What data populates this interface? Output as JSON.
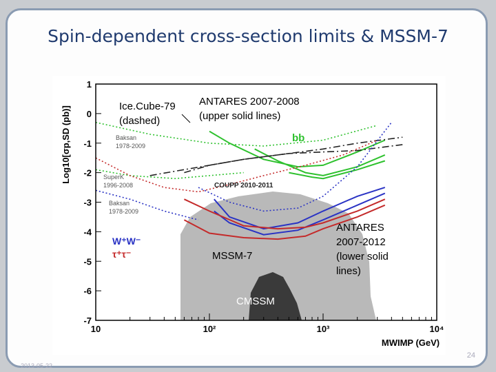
{
  "slide": {
    "title": "Spin-dependent cross-section limits & MSSM-7",
    "slide_number": "24",
    "date": "2013-05-22"
  },
  "chart_data": {
    "type": "line",
    "ylabel": "Log10[σp,SD (pb)]",
    "xlabel": "MWIMP (GeV)",
    "xscale": "log",
    "xlim": [
      10,
      10000
    ],
    "ylim": [
      -7,
      1
    ],
    "yticks": [
      "1",
      "0",
      "-1",
      "-2",
      "-3",
      "-4",
      "-5",
      "-6",
      "-7"
    ],
    "xticks": [
      "10",
      "10²",
      "10³",
      "10⁴"
    ],
    "annotations": {
      "icecube": [
        "Ice.Cube-79",
        "(dashed)"
      ],
      "antares_upper": [
        "ANTARES 2007-2008",
        "(upper solid lines)"
      ],
      "bb": "bb",
      "baksan_top": [
        "Baksan",
        "1978-2009"
      ],
      "superk": [
        "SuperK",
        "1996-2008"
      ],
      "baksan_mid": [
        "Baksan",
        "1978-2009"
      ],
      "coupp": "COUPP 2010-2011",
      "ww": "W⁺W⁻",
      "tautau": "τ⁺τ⁻",
      "antares_lower": [
        "ANTARES",
        "2007-2012",
        "(lower solid",
        "lines)"
      ],
      "mssm7": "MSSM-7",
      "cmssm": "CMSSM"
    },
    "colors": {
      "bb": "#2ec12e",
      "ww": "#2a33c4",
      "tau": "#c42a2a",
      "black": "#222222",
      "grey": "#b9b9b9",
      "dark": "#3a3a3a"
    },
    "series": [
      {
        "name": "ANTARES 2007-2008 bb",
        "color": "#2ec12e",
        "style": "solid",
        "x": [
          100,
          150,
          300,
          600,
          1000,
          2000,
          3500
        ],
        "y": [
          -0.6,
          -1.0,
          -1.55,
          -1.8,
          -1.75,
          -1.3,
          -0.9
        ]
      },
      {
        "name": "ANTARES 2007-2012 bb",
        "color": "#2ec12e",
        "style": "solid",
        "x": [
          250,
          400,
          700,
          1000,
          2000,
          3500
        ],
        "y": [
          -1.2,
          -1.6,
          -2.0,
          -2.1,
          -1.8,
          -1.4
        ]
      },
      {
        "name": "ANTARES 2007-2012 bb (2)",
        "color": "#2ec12e",
        "style": "solid",
        "x": [
          500,
          800,
          1000,
          2000,
          3500
        ],
        "y": [
          -2.0,
          -2.15,
          -2.2,
          -1.9,
          -1.6
        ]
      },
      {
        "name": "ANTARES 2007-2008 W+W-",
        "color": "#2a33c4",
        "style": "solid",
        "x": [
          110,
          150,
          300,
          600,
          1000,
          2000,
          3500
        ],
        "y": [
          -2.9,
          -3.5,
          -3.9,
          -3.7,
          -3.3,
          -2.8,
          -2.5
        ]
      },
      {
        "name": "ANTARES 2007-2012 W+W-",
        "color": "#2a33c4",
        "style": "solid",
        "x": [
          110,
          150,
          300,
          600,
          1000,
          2000,
          3500
        ],
        "y": [
          -3.3,
          -3.7,
          -4.1,
          -3.95,
          -3.6,
          -3.1,
          -2.7
        ]
      },
      {
        "name": "ANTARES 2007-2008 tau",
        "color": "#c42a2a",
        "style": "solid",
        "x": [
          60,
          100,
          200,
          400,
          700,
          1000,
          2000,
          3500
        ],
        "y": [
          -2.9,
          -3.3,
          -3.8,
          -3.9,
          -3.85,
          -3.7,
          -3.3,
          -2.9
        ]
      },
      {
        "name": "ANTARES 2007-2012 tau",
        "color": "#c42a2a",
        "style": "solid",
        "x": [
          60,
          100,
          200,
          400,
          700,
          1000,
          2000,
          3500
        ],
        "y": [
          -3.6,
          -4.05,
          -4.2,
          -4.25,
          -4.15,
          -3.9,
          -3.5,
          -3.1
        ]
      },
      {
        "name": "IceCube-79 bb",
        "color": "#222222",
        "style": "dashdot",
        "x": [
          30,
          50,
          100,
          200,
          500,
          1000,
          2000,
          5000
        ],
        "y": [
          -2.1,
          -1.95,
          -1.75,
          -1.55,
          -1.35,
          -1.3,
          -1.25,
          -1.05
        ]
      },
      {
        "name": "IceCube-79 W+W-",
        "color": "#222222",
        "style": "dashdot",
        "x": [
          60,
          100,
          200,
          500,
          1000,
          2000,
          5000
        ],
        "y": [
          -2.0,
          -1.75,
          -1.55,
          -1.35,
          -1.2,
          -1.0,
          -0.8
        ]
      },
      {
        "name": "Baksan 1978-2009 bb",
        "color": "#2ec12e",
        "style": "dotted",
        "x": [
          10,
          30,
          100,
          300,
          1000,
          3000
        ],
        "y": [
          -0.3,
          -0.7,
          -1.0,
          -1.1,
          -0.9,
          -0.4
        ]
      },
      {
        "name": "SuperK 1996-2008 bb",
        "color": "#2ec12e",
        "style": "dotted",
        "x": [
          10,
          20,
          50,
          100,
          200
        ],
        "y": [
          -1.9,
          -2.1,
          -2.2,
          -2.1,
          -2.0
        ]
      },
      {
        "name": "Baksan 1978-2009 W+W-",
        "color": "#2a33c4",
        "style": "dotted",
        "x": [
          80,
          150,
          300,
          600,
          1000,
          2000,
          4000
        ],
        "y": [
          -2.5,
          -3.0,
          -3.3,
          -3.2,
          -2.8,
          -1.8,
          -0.3
        ]
      },
      {
        "name": "SuperK W+W-",
        "color": "#2a33c4",
        "style": "dotted",
        "x": [
          10,
          20,
          40,
          80
        ],
        "y": [
          -2.6,
          -2.9,
          -3.3,
          -3.6
        ]
      },
      {
        "name": "COUPP 2010-2011",
        "color": "#c42a2a",
        "style": "dotted",
        "x": [
          10,
          20,
          40,
          80,
          150,
          300,
          700,
          1500,
          3000
        ],
        "y": [
          -1.5,
          -2.1,
          -2.5,
          -2.65,
          -2.4,
          -2.1,
          -1.75,
          -1.4,
          -0.9
        ]
      }
    ],
    "regions": [
      {
        "name": "MSSM-7",
        "color": "#b9b9b9"
      },
      {
        "name": "CMSSM",
        "color": "#3a3a3a"
      }
    ]
  }
}
